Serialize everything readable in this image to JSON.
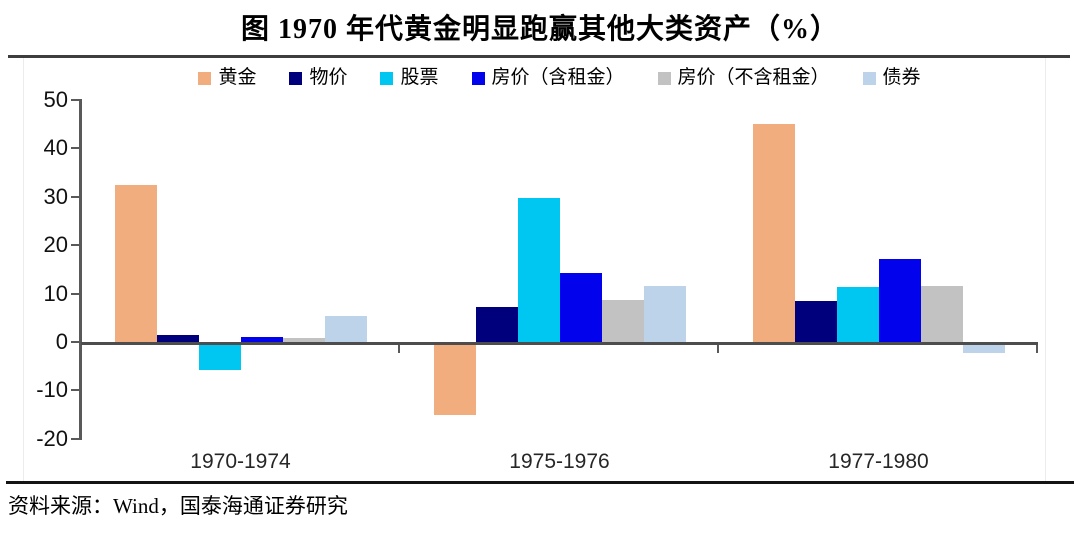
{
  "page": {
    "title": "图 1970 年代黄金明显跑赢其他大类资产（%）",
    "source": "资料来源：Wind，国泰海通证券研究"
  },
  "chart_data": {
    "type": "bar",
    "title": "图 1970 年代黄金明显跑赢其他大类资产（%）",
    "unit": "%",
    "categories": [
      "1970-1974",
      "1975-1976",
      "1977-1980"
    ],
    "series": [
      {
        "id": "gold",
        "name": "黄金",
        "color": "#F1AD7D",
        "values": [
          32.6,
          -14.9,
          45.3
        ]
      },
      {
        "id": "cpi",
        "name": "物价",
        "color": "#00007D",
        "values": [
          1.7,
          7.4,
          8.6
        ]
      },
      {
        "id": "stocks",
        "name": "股票",
        "color": "#00C7F2",
        "values": [
          -5.5,
          29.9,
          11.6
        ]
      },
      {
        "id": "house-incl-rent",
        "name": "房价（含租金）",
        "color": "#0202EC",
        "values": [
          1.3,
          14.5,
          17.3
        ]
      },
      {
        "id": "house-excl-rent",
        "name": "房价（不含租金）",
        "color": "#C2C2C2",
        "values": [
          1.0,
          8.8,
          11.8
        ]
      },
      {
        "id": "bonds",
        "name": "债券",
        "color": "#BDD3EA",
        "values": [
          5.5,
          11.8,
          -2.0
        ]
      }
    ],
    "yticks": [
      50,
      40,
      30,
      20,
      10,
      0,
      -10,
      -20
    ],
    "ylim": [
      -20,
      50
    ],
    "xlabel": "",
    "ylabel": "",
    "grid": false,
    "legend_position": "top"
  }
}
